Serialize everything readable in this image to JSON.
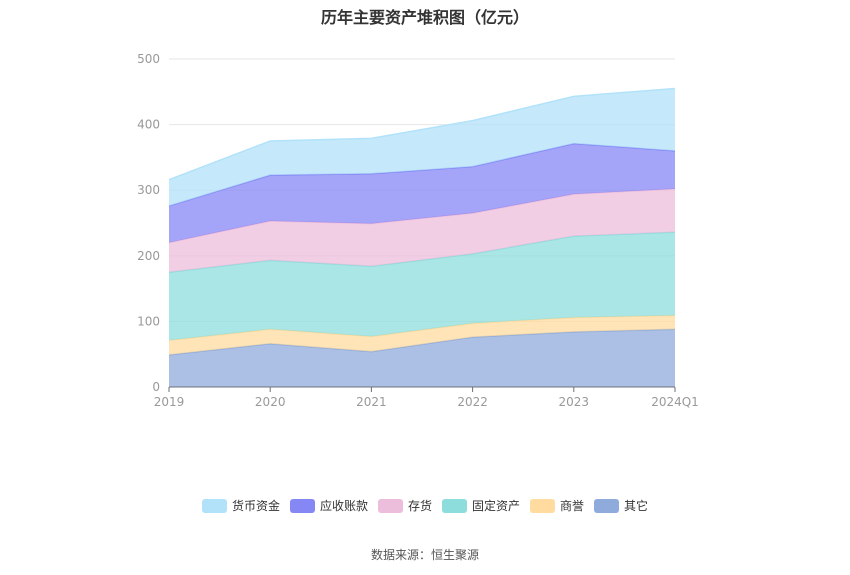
{
  "chart_data": {
    "type": "area",
    "stacked": true,
    "title": "历年主要资产堆积图（亿元）",
    "categories": [
      "2019",
      "2020",
      "2021",
      "2022",
      "2023",
      "2024Q1"
    ],
    "ylim": [
      0,
      500
    ],
    "yticks": [
      "0",
      "100",
      "200",
      "300",
      "400",
      "500"
    ],
    "grid": true,
    "legend_position": "bottom",
    "series": [
      {
        "name": "其它",
        "color": "#8fabdb",
        "values": [
          49,
          66,
          54,
          76,
          84,
          88
        ]
      },
      {
        "name": "商誉",
        "color": "#ffdba0",
        "values": [
          22,
          22,
          23,
          21,
          22,
          21
        ]
      },
      {
        "name": "固定资产",
        "color": "#8ddddc",
        "values": [
          104,
          105,
          107,
          106,
          124,
          127
        ]
      },
      {
        "name": "存货",
        "color": "#edbddc",
        "values": [
          45,
          60,
          65,
          62,
          64,
          66
        ]
      },
      {
        "name": "应收账款",
        "color": "#8587f5",
        "values": [
          56,
          70,
          76,
          71,
          77,
          58
        ]
      },
      {
        "name": "货币资金",
        "color": "#b2e2fa",
        "values": [
          40,
          52,
          54,
          70,
          72,
          95
        ]
      }
    ],
    "legend_order": [
      "货币资金",
      "应收账款",
      "存货",
      "固定资产",
      "商誉",
      "其它"
    ]
  },
  "source_text": "数据来源：恒生聚源"
}
